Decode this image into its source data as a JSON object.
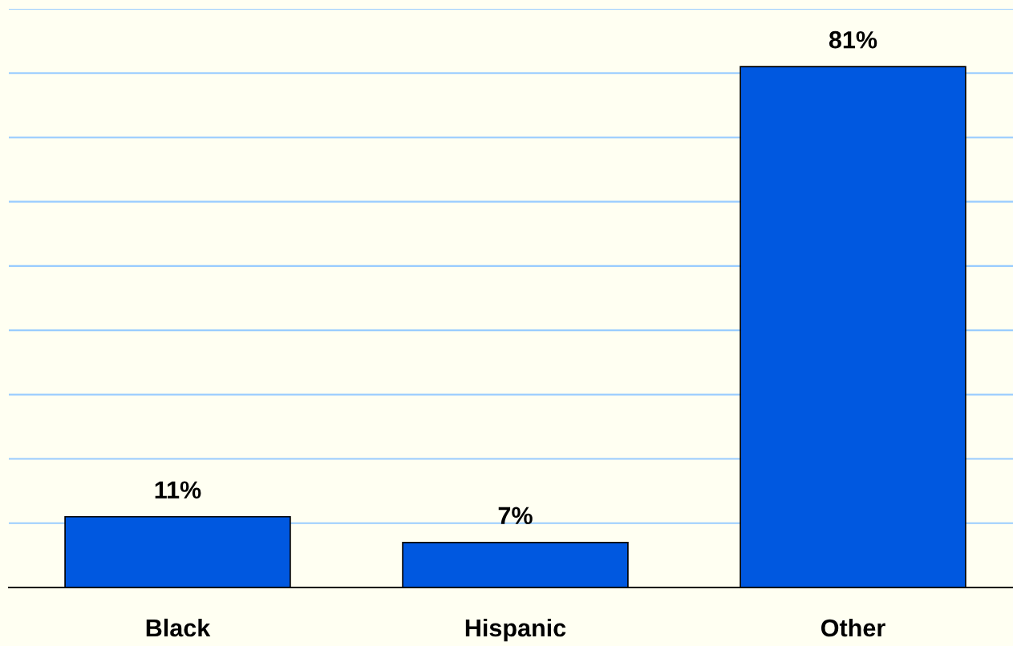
{
  "chart_data": {
    "type": "bar",
    "categories": [
      "Black",
      "Hispanic",
      "Other"
    ],
    "values": [
      11,
      7,
      81
    ],
    "color": "#0058e0",
    "value_labels": [
      "11%",
      "7%",
      "81%"
    ],
    "ylim": [
      0,
      90
    ],
    "yticks": [
      {
        "value": 0,
        "label": null
      },
      {
        "value": 10,
        "label": null
      },
      {
        "value": 20,
        "label": null
      },
      {
        "value": 30,
        "label": null
      },
      {
        "value": 40,
        "label": null
      },
      {
        "value": 50,
        "label": null
      },
      {
        "value": 60,
        "label": null
      },
      {
        "value": 70,
        "label": null
      },
      {
        "value": 80,
        "label": null
      },
      {
        "value": 90,
        "label": null
      }
    ],
    "grid": "y",
    "tick_labels": "x",
    "legend": false
  }
}
